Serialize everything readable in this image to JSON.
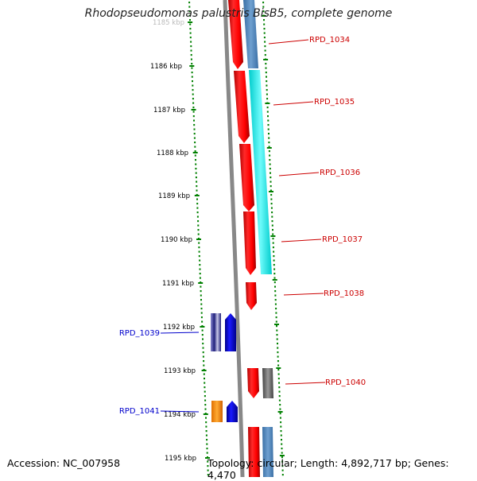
{
  "title": "Rhodopseudomonas palustris BisB5, complete genome",
  "accession": "Accession: NC_007958",
  "summary": "Topology: circular; Length: 4,892,717 bp; Genes: 4,470",
  "kbp_labels": [
    "1185 kbp",
    "1186 kbp",
    "1187 kbp",
    "1188 kbp",
    "1189 kbp",
    "1190 kbp",
    "1191 kbp",
    "1192 kbp",
    "1193 kbp",
    "1194 kbp",
    "1195 kbp"
  ],
  "genes_right": [
    "RPD_1034",
    "RPD_1035",
    "RPD_1036",
    "RPD_1037",
    "RPD_1038",
    "RPD_1040"
  ],
  "genes_left": [
    "RPD_1039",
    "RPD_1041"
  ],
  "colors": {
    "cds_red": "#ff0000",
    "track_steelblue": "#4a7fb5",
    "track_cyan": "#00e5e5",
    "cds_blue": "#0000ee",
    "cds_navy": "#1a1a8c",
    "cds_orange": "#ff8c00",
    "cds_gray": "#666666",
    "backbone": "#888888",
    "ticks": "#008000",
    "label_right": "#cc0000",
    "label_left": "#0000cc"
  }
}
